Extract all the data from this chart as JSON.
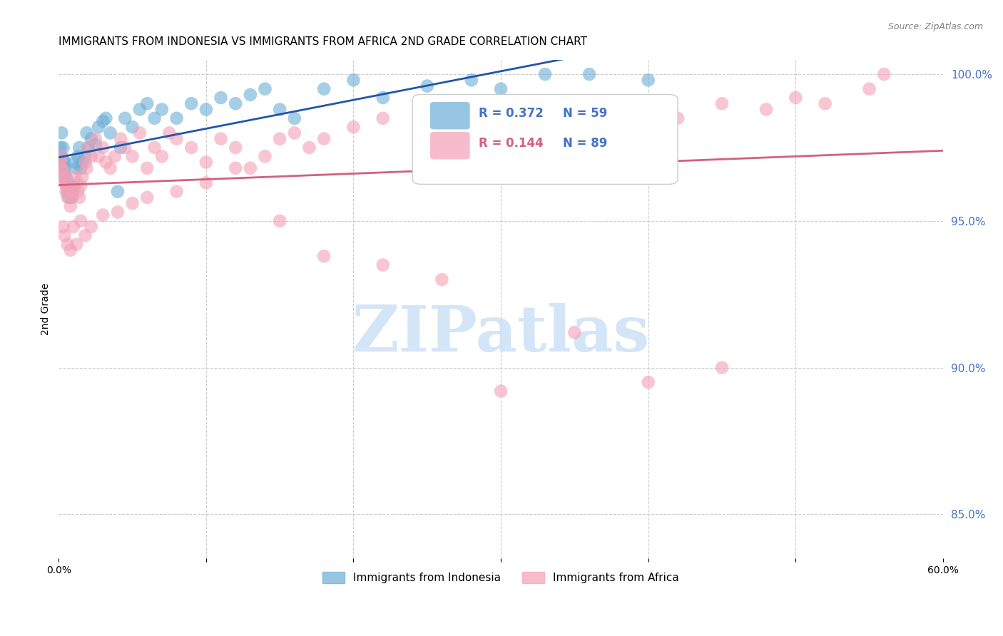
{
  "title": "IMMIGRANTS FROM INDONESIA VS IMMIGRANTS FROM AFRICA 2ND GRADE CORRELATION CHART",
  "source": "Source: ZipAtlas.com",
  "xlabel": "",
  "ylabel": "2nd Grade",
  "xlim": [
    0.0,
    0.6
  ],
  "ylim": [
    0.835,
    1.005
  ],
  "xticks": [
    0.0,
    0.1,
    0.2,
    0.3,
    0.4,
    0.5,
    0.6
  ],
  "xticklabels": [
    "0.0%",
    "",
    "",
    "",
    "",
    "",
    "60.0%"
  ],
  "yticks_right": [
    0.85,
    0.9,
    0.95,
    1.0
  ],
  "ytick_labels_right": [
    "85.0%",
    "90.0%",
    "95.0%",
    "100.0%"
  ],
  "legend_entries": [
    {
      "label": "Immigrants from Indonesia",
      "color": "#6baed6"
    },
    {
      "label": "Immigrants from Africa",
      "color": "#fb9a99"
    }
  ],
  "legend_r_entries": [
    {
      "r": "0.372",
      "n": "59",
      "color_r": "#4472c4",
      "color_n": "#4472c4"
    },
    {
      "r": "0.144",
      "n": "89",
      "color_r": "#e05c8a",
      "color_n": "#e05c8a"
    }
  ],
  "indonesia": {
    "color": "#6baed6",
    "alpha": 0.6,
    "trend_color": "#2255aa",
    "r": 0.372,
    "n": 59,
    "x": [
      0.001,
      0.002,
      0.002,
      0.003,
      0.003,
      0.003,
      0.004,
      0.004,
      0.004,
      0.005,
      0.005,
      0.006,
      0.006,
      0.007,
      0.008,
      0.008,
      0.009,
      0.01,
      0.011,
      0.012,
      0.013,
      0.014,
      0.015,
      0.016,
      0.018,
      0.019,
      0.02,
      0.022,
      0.025,
      0.027,
      0.03,
      0.032,
      0.035,
      0.04,
      0.042,
      0.045,
      0.05,
      0.055,
      0.06,
      0.065,
      0.07,
      0.08,
      0.09,
      0.1,
      0.11,
      0.12,
      0.13,
      0.14,
      0.15,
      0.16,
      0.18,
      0.2,
      0.22,
      0.25,
      0.28,
      0.3,
      0.33,
      0.36,
      0.4
    ],
    "y": [
      0.975,
      0.98,
      0.972,
      0.968,
      0.971,
      0.975,
      0.97,
      0.968,
      0.966,
      0.965,
      0.963,
      0.962,
      0.96,
      0.958,
      0.96,
      0.962,
      0.958,
      0.962,
      0.97,
      0.968,
      0.972,
      0.975,
      0.968,
      0.97,
      0.972,
      0.98,
      0.975,
      0.978,
      0.976,
      0.982,
      0.984,
      0.985,
      0.98,
      0.96,
      0.975,
      0.985,
      0.982,
      0.988,
      0.99,
      0.985,
      0.988,
      0.985,
      0.99,
      0.988,
      0.992,
      0.99,
      0.993,
      0.995,
      0.988,
      0.985,
      0.995,
      0.998,
      0.992,
      0.996,
      0.998,
      0.995,
      1.0,
      1.0,
      0.998
    ]
  },
  "africa": {
    "color": "#f4a0b5",
    "alpha": 0.6,
    "trend_color": "#d45f7f",
    "r": 0.144,
    "n": 89,
    "x": [
      0.001,
      0.002,
      0.002,
      0.003,
      0.003,
      0.004,
      0.004,
      0.005,
      0.005,
      0.006,
      0.007,
      0.008,
      0.009,
      0.01,
      0.011,
      0.012,
      0.013,
      0.014,
      0.015,
      0.016,
      0.018,
      0.019,
      0.02,
      0.022,
      0.025,
      0.027,
      0.03,
      0.032,
      0.035,
      0.038,
      0.042,
      0.045,
      0.05,
      0.055,
      0.06,
      0.065,
      0.07,
      0.075,
      0.08,
      0.09,
      0.1,
      0.11,
      0.12,
      0.13,
      0.14,
      0.15,
      0.16,
      0.17,
      0.18,
      0.2,
      0.22,
      0.25,
      0.28,
      0.3,
      0.32,
      0.35,
      0.38,
      0.4,
      0.42,
      0.45,
      0.48,
      0.5,
      0.52,
      0.55,
      0.003,
      0.004,
      0.006,
      0.008,
      0.01,
      0.012,
      0.015,
      0.018,
      0.022,
      0.03,
      0.04,
      0.05,
      0.06,
      0.08,
      0.1,
      0.12,
      0.15,
      0.18,
      0.22,
      0.26,
      0.3,
      0.35,
      0.4,
      0.45,
      0.56
    ],
    "y": [
      0.97,
      0.972,
      0.968,
      0.965,
      0.967,
      0.963,
      0.965,
      0.96,
      0.962,
      0.958,
      0.96,
      0.955,
      0.958,
      0.96,
      0.965,
      0.963,
      0.96,
      0.958,
      0.962,
      0.965,
      0.97,
      0.968,
      0.975,
      0.972,
      0.978,
      0.972,
      0.975,
      0.97,
      0.968,
      0.972,
      0.978,
      0.975,
      0.972,
      0.98,
      0.968,
      0.975,
      0.972,
      0.98,
      0.978,
      0.975,
      0.97,
      0.978,
      0.975,
      0.968,
      0.972,
      0.978,
      0.98,
      0.975,
      0.978,
      0.982,
      0.985,
      0.98,
      0.978,
      0.982,
      0.985,
      0.985,
      0.982,
      0.988,
      0.985,
      0.99,
      0.988,
      0.992,
      0.99,
      0.995,
      0.948,
      0.945,
      0.942,
      0.94,
      0.948,
      0.942,
      0.95,
      0.945,
      0.948,
      0.952,
      0.953,
      0.956,
      0.958,
      0.96,
      0.963,
      0.968,
      0.95,
      0.938,
      0.935,
      0.93,
      0.892,
      0.912,
      0.895,
      0.9,
      1.0
    ]
  },
  "watermark": "ZIPatlas",
  "watermark_color": "#c8dff5",
  "background_color": "#ffffff",
  "grid_color": "#cccccc",
  "right_axis_color": "#4472c4",
  "title_fontsize": 11,
  "axis_label_fontsize": 10
}
